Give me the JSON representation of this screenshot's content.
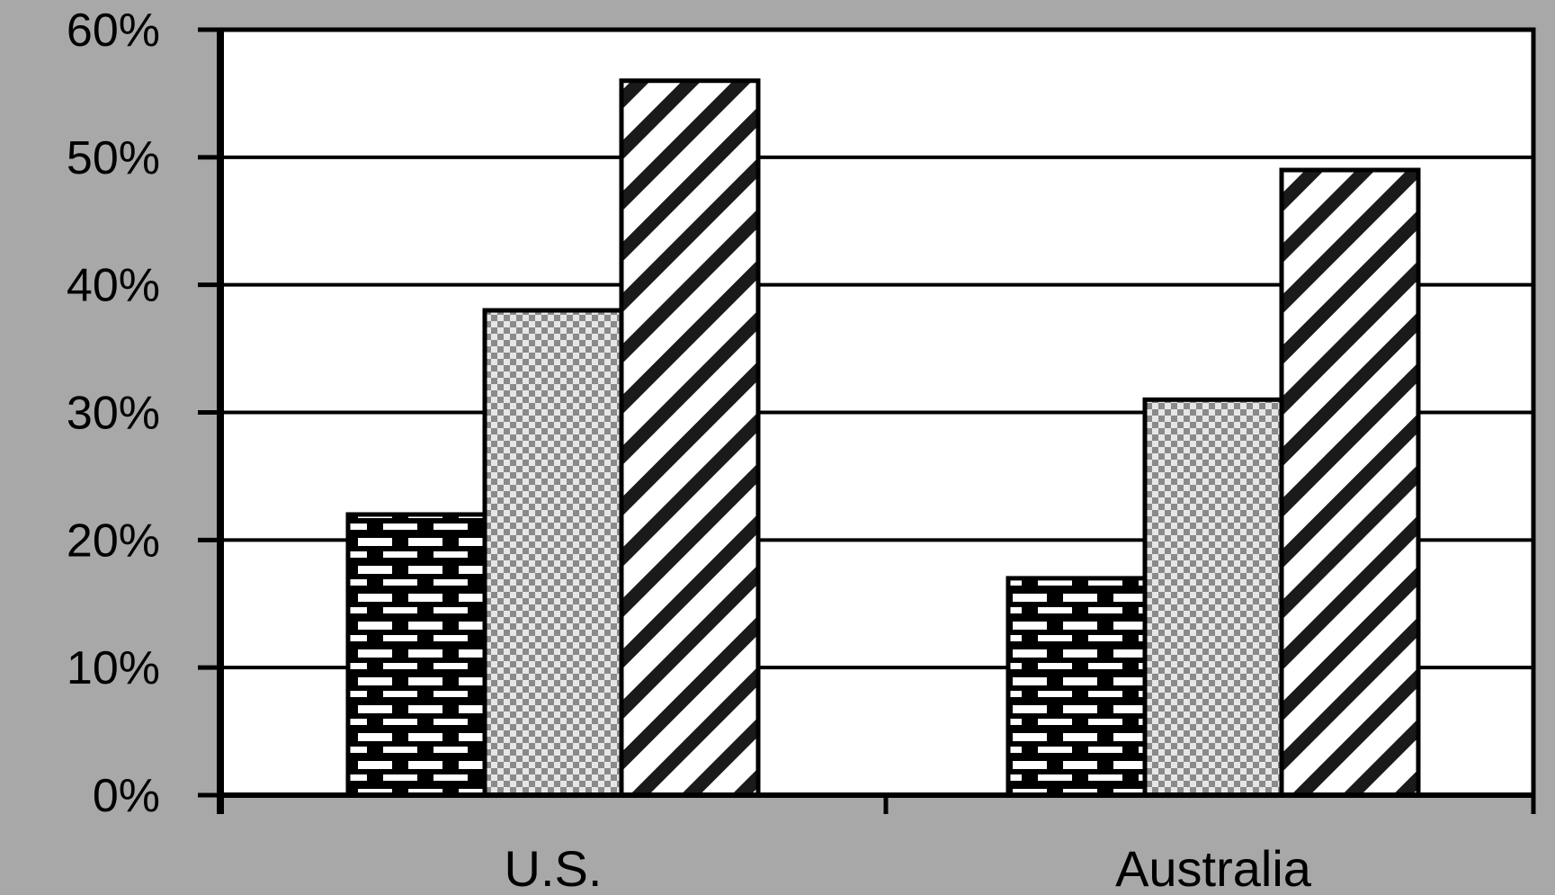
{
  "chart_data": {
    "type": "bar",
    "title": "",
    "xlabel": "",
    "ylabel": "",
    "categories": [
      "U.S.",
      "Australia"
    ],
    "series": [
      {
        "values": [
          22,
          17
        ],
        "pattern": "brick"
      },
      {
        "values": [
          38,
          31
        ],
        "pattern": "checker"
      },
      {
        "values": [
          56,
          49
        ],
        "pattern": "diagonal-stripes"
      }
    ],
    "ylim": [
      0,
      60
    ],
    "yticks": [
      0,
      10,
      20,
      30,
      40,
      50,
      60
    ],
    "ytick_labels": [
      "0%",
      "10%",
      "20%",
      "30%",
      "40%",
      "50%",
      "60%"
    ],
    "grid": "horizontal",
    "legend": "none",
    "colors": {
      "frame_background": "#a8a8a8",
      "plot_background": "#ffffff",
      "axis": "#000000",
      "checker_dark": "#8a8a8a",
      "checker_light": "#e6e6e6"
    }
  }
}
